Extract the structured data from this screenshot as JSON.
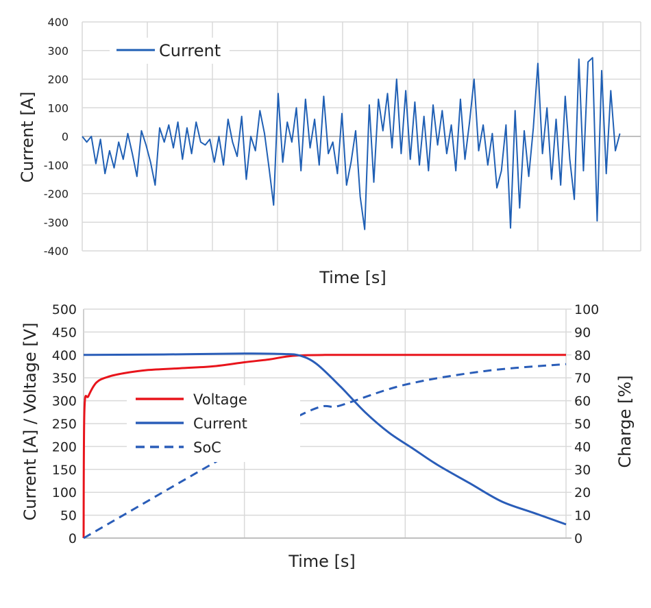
{
  "chart_data": [
    {
      "type": "line",
      "xlabel": "Time [s]",
      "ylabel": "Current [A]",
      "ylim": [
        -400,
        400
      ],
      "yticks": [
        "400",
        "300",
        "200",
        "100",
        "0",
        "-100",
        "-200",
        "-300",
        "-400"
      ],
      "xlim": [
        0,
        858
      ],
      "grid": true,
      "legend_position": "top-left",
      "series": [
        {
          "name": "Current",
          "color": "#1f5fb4",
          "x_step": 7,
          "values": [
            0,
            -20,
            0,
            -95,
            -10,
            -130,
            -50,
            -110,
            -20,
            -80,
            10,
            -60,
            -140,
            20,
            -30,
            -90,
            -170,
            30,
            -20,
            40,
            -40,
            50,
            -80,
            30,
            -60,
            50,
            -20,
            -30,
            -10,
            -90,
            0,
            -100,
            60,
            -20,
            -70,
            70,
            -150,
            0,
            -50,
            90,
            10,
            -110,
            -240,
            150,
            -90,
            50,
            -20,
            100,
            -120,
            130,
            -40,
            60,
            -100,
            140,
            -60,
            -20,
            -130,
            80,
            -170,
            -90,
            20,
            -210,
            -325,
            110,
            -160,
            130,
            20,
            150,
            -40,
            200,
            -60,
            160,
            -80,
            120,
            -100,
            70,
            -120,
            110,
            -30,
            90,
            -60,
            40,
            -120,
            130,
            -80,
            50,
            200,
            -50,
            40,
            -100,
            10,
            -180,
            -120,
            40,
            -320,
            90,
            -250,
            20,
            -140,
            30,
            255,
            -60,
            100,
            -150,
            60,
            -170,
            140,
            -80,
            -220,
            270,
            -120,
            260,
            275,
            -295,
            230,
            -130,
            160,
            -50,
            10
          ]
        }
      ]
    },
    {
      "type": "line",
      "xlabel": "Time [s]",
      "ylabel": "Current [A] / Voltage [V]",
      "ylabel_right": "Charge [%]",
      "ylim": [
        0,
        500
      ],
      "ylim_right": [
        0,
        100
      ],
      "yticks": [
        "500",
        "450",
        "400",
        "350",
        "300",
        "250",
        "200",
        "150",
        "100",
        "50",
        "0"
      ],
      "yticks_right": [
        "100",
        "90",
        "80",
        "70",
        "60",
        "50",
        "40",
        "30",
        "20",
        "10",
        "0"
      ],
      "xlim": [
        0,
        300
      ],
      "grid": true,
      "legend_position": "center-left",
      "series": [
        {
          "name": "Voltage",
          "color": "#e8141b",
          "axis": "left",
          "style": "solid",
          "points": [
            [
              0,
              0
            ],
            [
              0.5,
              280
            ],
            [
              3,
              310
            ],
            [
              8,
              340
            ],
            [
              15,
              352
            ],
            [
              25,
              360
            ],
            [
              40,
              367
            ],
            [
              60,
              371
            ],
            [
              80,
              375
            ],
            [
              100,
              384
            ],
            [
              115,
              390
            ],
            [
              130,
              398
            ],
            [
              150,
              400
            ],
            [
              200,
              400
            ],
            [
              300,
              400
            ]
          ]
        },
        {
          "name": "Current",
          "color": "#2a5db8",
          "axis": "left",
          "style": "solid",
          "points": [
            [
              0,
              400
            ],
            [
              50,
              401
            ],
            [
              100,
              403
            ],
            [
              125,
              402
            ],
            [
              135,
              398
            ],
            [
              145,
              380
            ],
            [
              160,
              330
            ],
            [
              175,
              275
            ],
            [
              190,
              230
            ],
            [
              205,
              195
            ],
            [
              220,
              160
            ],
            [
              240,
              120
            ],
            [
              260,
              80
            ],
            [
              280,
              55
            ],
            [
              300,
              30
            ]
          ]
        },
        {
          "name": "SoC",
          "color": "#2a5db8",
          "axis": "right",
          "style": "dashed",
          "points": [
            [
              0,
              0
            ],
            [
              130,
              52
            ],
            [
              160,
              58
            ],
            [
              200,
              67
            ],
            [
              250,
              73
            ],
            [
              300,
              76
            ]
          ]
        }
      ]
    }
  ]
}
